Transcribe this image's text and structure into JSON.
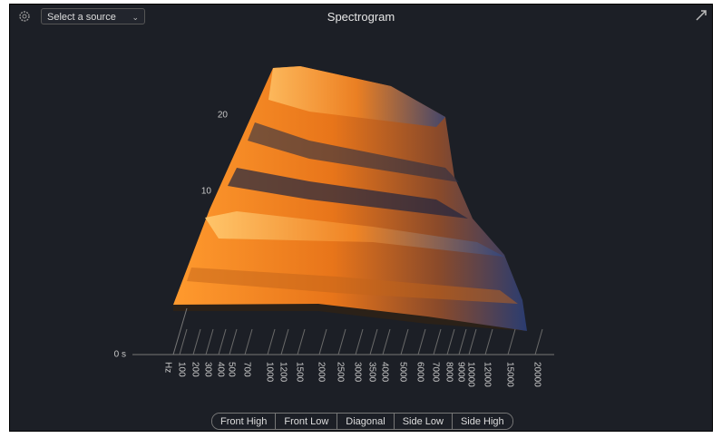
{
  "header": {
    "source_select": "Select a source",
    "title": "Spectrogram"
  },
  "plot": {
    "time_labels": [
      "20",
      "10",
      "0 s"
    ],
    "freq_labels": [
      "Hz",
      "100",
      "200",
      "300",
      "400",
      "500",
      "700",
      "1000",
      "1200",
      "1500",
      "2000",
      "2500",
      "3000",
      "3500",
      "4000",
      "5000",
      "6000",
      "7000",
      "8000",
      "9000",
      "10000",
      "12000",
      "15000",
      "20000"
    ]
  },
  "view_buttons": [
    "Front High",
    "Front Low",
    "Diagonal",
    "Side Low",
    "Side High"
  ]
}
